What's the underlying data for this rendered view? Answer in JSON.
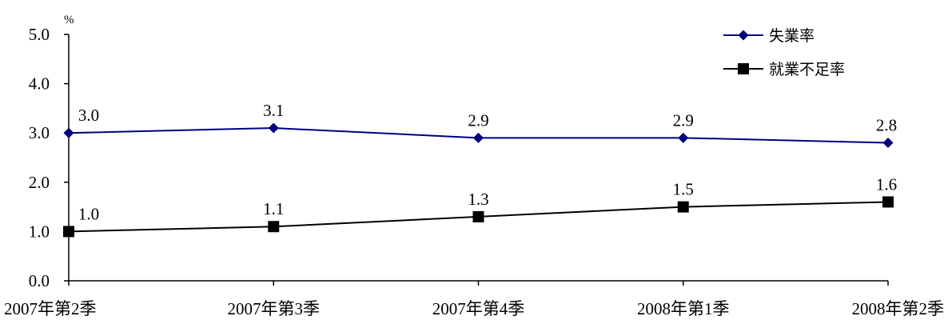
{
  "chart_data": {
    "type": "line",
    "title": "",
    "xlabel": "",
    "ylabel": "%",
    "ylim": [
      0,
      5
    ],
    "yticks": [
      "0.0",
      "1.0",
      "2.0",
      "3.0",
      "4.0",
      "5.0"
    ],
    "categories": [
      "2007年第2季",
      "2007年第3季",
      "2007年第4季",
      "2008年第1季",
      "2008年第2季"
    ],
    "grid": false,
    "legend": "top-right",
    "series": [
      {
        "name": "失業率",
        "values": [
          3.0,
          3.1,
          2.9,
          2.9,
          2.8
        ],
        "labels": [
          "3.0",
          "3.1",
          "2.9",
          "2.9",
          "2.8"
        ],
        "color": "#000080",
        "marker": "diamond"
      },
      {
        "name": "就業不足率",
        "values": [
          1.0,
          1.1,
          1.3,
          1.5,
          1.6
        ],
        "labels": [
          "1.0",
          "1.1",
          "1.3",
          "1.5",
          "1.6"
        ],
        "color": "#000000",
        "marker": "square"
      }
    ]
  }
}
